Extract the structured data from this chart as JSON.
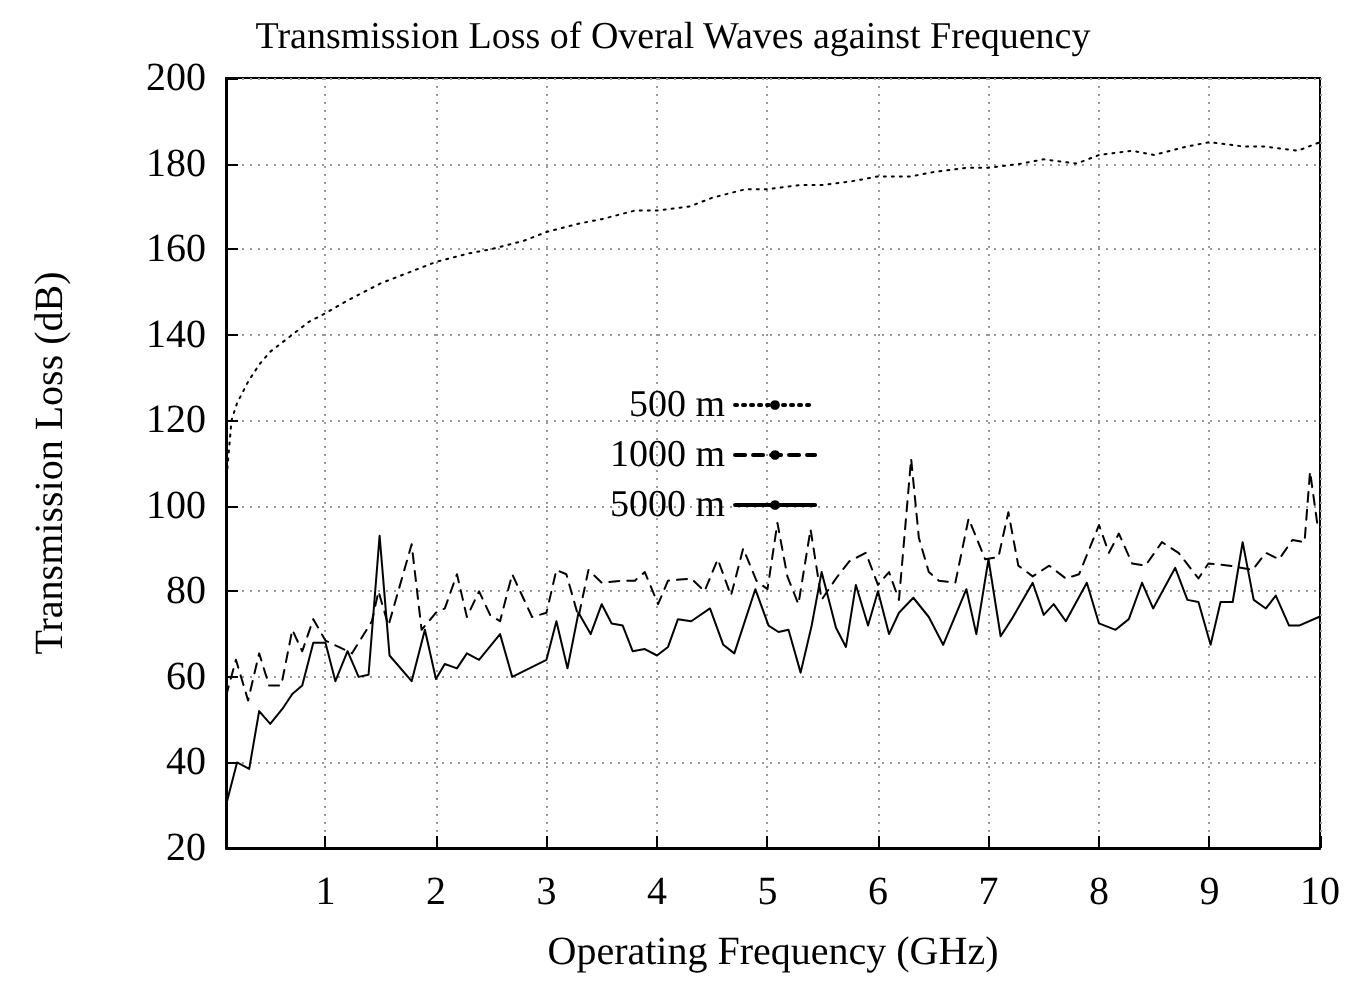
{
  "chart_data": {
    "type": "line",
    "title": "Transmission Loss of Overal Waves against Frequency",
    "xlabel": "Operating Frequency (GHz)",
    "ylabel": "Transmission Loss (dB)",
    "xlim": [
      0.1,
      10
    ],
    "xticks": [
      1,
      2,
      3,
      4,
      5,
      6,
      7,
      8,
      9,
      10
    ],
    "ylim": [
      20,
      200
    ],
    "yticks": [
      20,
      40,
      60,
      80,
      100,
      120,
      140,
      160,
      180,
      200
    ],
    "grid": true,
    "legend": "center",
    "marker": "none",
    "series": [
      {
        "name": "500 m",
        "color": "#000000",
        "line_style": "dotted",
        "x": [
          0.1,
          0.15,
          0.2,
          0.3,
          0.4,
          0.5,
          0.7,
          0.85,
          1.0,
          1.2,
          1.5,
          1.8,
          2.0,
          2.3,
          2.5,
          2.8,
          3.0,
          3.3,
          3.5,
          3.8,
          4.0,
          4.3,
          4.5,
          4.8,
          5.0,
          5.3,
          5.5,
          5.8,
          6.0,
          6.3,
          6.5,
          6.8,
          7.0,
          7.3,
          7.5,
          7.8,
          8.0,
          8.3,
          8.5,
          8.8,
          9.0,
          9.3,
          9.5,
          9.8,
          10.0
        ],
        "values": [
          105,
          120,
          124,
          129,
          133,
          136,
          140,
          143,
          145,
          148,
          152,
          155,
          157,
          159,
          160,
          162,
          164,
          166,
          167,
          169,
          169,
          170,
          172,
          174,
          174,
          175,
          175,
          176,
          177,
          177,
          178,
          179,
          179,
          180,
          181,
          180,
          182,
          183,
          182,
          184,
          185,
          184,
          184,
          183,
          185
        ]
      },
      {
        "name": "1000 m",
        "color": "#000000",
        "line_style": "dashed",
        "x": [
          0.1,
          0.19,
          0.3,
          0.4,
          0.49,
          0.6,
          0.7,
          0.79,
          0.89,
          1.0,
          1.12,
          1.24,
          1.42,
          1.48,
          1.57,
          1.78,
          1.87,
          2.0,
          2.08,
          2.19,
          2.28,
          2.39,
          2.49,
          2.58,
          2.69,
          2.87,
          3.0,
          3.09,
          3.18,
          3.29,
          3.38,
          3.5,
          3.68,
          3.8,
          3.89,
          4.01,
          4.1,
          4.31,
          4.43,
          4.55,
          4.67,
          4.78,
          4.9,
          5.0,
          5.09,
          5.18,
          5.28,
          5.39,
          5.49,
          5.62,
          5.74,
          5.89,
          6.0,
          6.1,
          6.19,
          6.3,
          6.37,
          6.46,
          6.55,
          6.7,
          6.82,
          6.97,
          7.09,
          7.18,
          7.27,
          7.4,
          7.55,
          7.7,
          7.82,
          8.0,
          8.09,
          8.18,
          8.3,
          8.42,
          8.57,
          8.72,
          8.9,
          8.99,
          9.18,
          9.39,
          9.51,
          9.63,
          9.75,
          9.86,
          9.91,
          9.98
        ],
        "values": [
          55.5,
          64,
          54.5,
          65.5,
          58,
          58,
          71,
          66,
          73.5,
          68.5,
          67,
          65.5,
          73,
          80,
          72,
          91,
          71,
          75,
          76,
          84,
          74,
          80,
          74.5,
          73,
          84,
          74,
          75,
          85,
          84,
          74,
          85,
          82,
          82.5,
          82.5,
          84.5,
          77,
          82.5,
          83,
          80,
          87.5,
          79,
          90,
          82.5,
          80.5,
          96,
          83.5,
          77,
          94.5,
          78,
          83,
          87,
          89,
          81.5,
          84.5,
          78,
          111,
          92.5,
          84.5,
          82.5,
          82,
          97,
          87.5,
          88,
          98.5,
          86,
          83.5,
          86,
          83,
          84,
          95.5,
          89,
          93.5,
          86.5,
          86,
          91.5,
          89,
          83,
          86.5,
          86,
          85,
          89,
          87.5,
          92,
          91.5,
          108,
          95
        ]
      },
      {
        "name": "5000 m",
        "color": "#000000",
        "line_style": "solid",
        "x": [
          0.1,
          0.2,
          0.31,
          0.4,
          0.5,
          0.61,
          0.7,
          0.79,
          0.89,
          1.0,
          1.09,
          1.2,
          1.3,
          1.39,
          1.49,
          1.58,
          1.78,
          1.9,
          2.0,
          2.08,
          2.19,
          2.28,
          2.39,
          2.58,
          2.69,
          3.0,
          3.09,
          3.19,
          3.29,
          3.4,
          3.5,
          3.59,
          3.69,
          3.78,
          3.89,
          4.0,
          4.1,
          4.19,
          4.31,
          4.48,
          4.6,
          4.7,
          4.89,
          5.01,
          5.1,
          5.19,
          5.3,
          5.4,
          5.49,
          5.62,
          5.71,
          5.8,
          5.91,
          6.0,
          6.1,
          6.19,
          6.32,
          6.46,
          6.59,
          6.8,
          6.89,
          7.0,
          7.11,
          7.21,
          7.4,
          7.5,
          7.59,
          7.7,
          7.89,
          8.0,
          8.15,
          8.27,
          8.39,
          8.49,
          8.69,
          8.8,
          8.9,
          9.01,
          9.1,
          9.21,
          9.3,
          9.4,
          9.51,
          9.6,
          9.72,
          9.81,
          9.99
        ],
        "values": [
          30,
          40,
          38.5,
          52,
          49,
          52.5,
          56,
          58,
          68,
          68,
          59,
          66,
          60,
          60.5,
          93,
          65,
          59,
          71,
          59.5,
          63,
          62,
          65.5,
          64,
          70,
          60,
          64,
          73,
          62,
          75,
          70,
          77,
          72.5,
          72,
          66,
          66.5,
          65,
          67,
          73.5,
          73,
          76,
          67.5,
          65.5,
          80.5,
          72,
          70.5,
          71,
          61,
          72,
          84.5,
          71.5,
          67,
          81.5,
          72,
          80,
          70,
          75,
          78.5,
          74,
          67.5,
          80.5,
          70,
          87.5,
          69.5,
          73.5,
          82,
          74.5,
          77,
          73,
          82,
          72.5,
          71,
          73.5,
          82,
          76,
          85.5,
          78,
          77.5,
          67.5,
          77.5,
          77.5,
          91.5,
          78,
          76,
          79,
          72,
          72,
          74
        ]
      }
    ]
  }
}
